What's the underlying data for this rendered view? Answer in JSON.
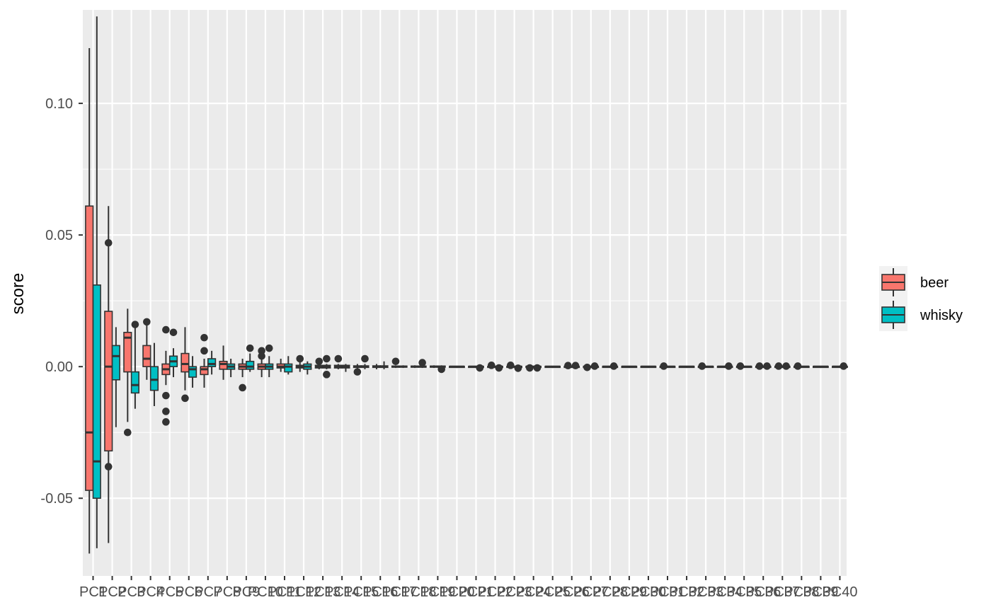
{
  "colors": {
    "beer": "#F8766D",
    "whisky": "#00BFC4",
    "panel": "#EBEBEB",
    "grid": "#FFFFFF",
    "box_outline": "#333333"
  },
  "legend": {
    "position": "right",
    "items": [
      {
        "key": "beer",
        "label": "beer"
      },
      {
        "key": "whisky",
        "label": "whisky"
      }
    ]
  },
  "chart_data": {
    "type": "boxplot",
    "title": "",
    "xlabel": "",
    "ylabel": "score",
    "ylim": [
      -0.0795,
      0.1355
    ],
    "yticks": [
      -0.05,
      0.0,
      0.05,
      0.1
    ],
    "ytick_labels": [
      "-0.05",
      "0.00",
      "0.05",
      "0.10"
    ],
    "grid": true,
    "categories": [
      "PC1",
      "PC2",
      "PC3",
      "PC4",
      "PC5",
      "PC6",
      "PC7",
      "PC8",
      "PC9",
      "PC10",
      "PC11",
      "PC12",
      "PC13",
      "PC14",
      "PC15",
      "PC16",
      "PC17",
      "PC18",
      "PC19",
      "PC20",
      "PC21",
      "PC22",
      "PC23",
      "PC24",
      "PC25",
      "PC26",
      "PC27",
      "PC28",
      "PC29",
      "PC30",
      "PC31",
      "PC32",
      "PC33",
      "PC34",
      "PC35",
      "PC36",
      "PC37",
      "PC38",
      "PC39",
      "PC40"
    ],
    "series": [
      {
        "name": "beer",
        "boxes": [
          {
            "lo": -0.071,
            "q1": -0.047,
            "med": -0.025,
            "q3": 0.061,
            "hi": 0.121,
            "out": []
          },
          {
            "lo": -0.067,
            "q1": -0.032,
            "med": 0.0,
            "q3": 0.021,
            "hi": 0.061,
            "out": [
              0.047,
              -0.038
            ]
          },
          {
            "lo": -0.021,
            "q1": -0.002,
            "med": 0.011,
            "q3": 0.013,
            "hi": 0.022,
            "out": [
              -0.025
            ]
          },
          {
            "lo": -0.005,
            "q1": 0.0,
            "med": 0.003,
            "q3": 0.008,
            "hi": 0.016,
            "out": [
              0.017
            ]
          },
          {
            "lo": -0.007,
            "q1": -0.003,
            "med": -0.001,
            "q3": 0.001,
            "hi": 0.006,
            "out": [
              0.014,
              -0.011,
              -0.017,
              -0.021
            ]
          },
          {
            "lo": -0.009,
            "q1": -0.002,
            "med": 0.001,
            "q3": 0.005,
            "hi": 0.015,
            "out": [
              -0.012
            ]
          },
          {
            "lo": -0.008,
            "q1": -0.003,
            "med": -0.001,
            "q3": 0.0,
            "hi": 0.003,
            "out": [
              0.011,
              0.006
            ]
          },
          {
            "lo": -0.005,
            "q1": -0.001,
            "med": 0.001,
            "q3": 0.002,
            "hi": 0.008,
            "out": []
          },
          {
            "lo": -0.004,
            "q1": -0.001,
            "med": 0.0,
            "q3": 0.001,
            "hi": 0.003,
            "out": [
              -0.008
            ]
          },
          {
            "lo": -0.004,
            "q1": -0.001,
            "med": 0.0,
            "q3": 0.001,
            "hi": 0.003,
            "out": [
              0.006,
              0.004
            ]
          },
          {
            "lo": -0.002,
            "q1": -0.0005,
            "med": 0.0,
            "q3": 0.001,
            "hi": 0.003,
            "out": []
          },
          {
            "lo": -0.002,
            "q1": -0.0005,
            "med": 0.0,
            "q3": 0.0005,
            "hi": 0.002,
            "out": [
              0.003
            ]
          },
          {
            "lo": -0.001,
            "q1": -0.0005,
            "med": 0.0,
            "q3": 0.0005,
            "hi": 0.001,
            "out": [
              0.002
            ]
          },
          {
            "lo": -0.001,
            "q1": -0.0005,
            "med": 0.0,
            "q3": 0.0005,
            "hi": 0.001,
            "out": [
              0.003
            ]
          },
          {
            "lo": -0.001,
            "q1": -0.0003,
            "med": 0.0,
            "q3": 0.0003,
            "hi": 0.001,
            "out": [
              -0.002
            ]
          },
          {
            "lo": -0.001,
            "q1": -0.0003,
            "med": 0.0,
            "q3": 0.0003,
            "hi": 0.001,
            "out": []
          },
          {
            "lo": -0.0005,
            "q1": -0.0002,
            "med": 0.0,
            "q3": 0.0002,
            "hi": 0.0005,
            "out": [
              0.002
            ]
          },
          {
            "lo": -0.0005,
            "q1": -0.0002,
            "med": 0.0,
            "q3": 0.0002,
            "hi": 0.0005,
            "out": []
          },
          {
            "lo": -0.0005,
            "q1": -0.0002,
            "med": 0.0,
            "q3": 0.0002,
            "hi": 0.0005,
            "out": []
          },
          {
            "lo": -0.0003,
            "q1": -0.0001,
            "med": 0.0,
            "q3": 0.0001,
            "hi": 0.0003,
            "out": []
          },
          {
            "lo": -0.0003,
            "q1": -0.0001,
            "med": 0.0,
            "q3": 0.0001,
            "hi": 0.0003,
            "out": []
          },
          {
            "lo": -0.0003,
            "q1": -0.0001,
            "med": 0.0,
            "q3": 0.0001,
            "hi": 0.0003,
            "out": [
              0.0005
            ]
          },
          {
            "lo": -0.0003,
            "q1": -0.0001,
            "med": 0.0,
            "q3": 0.0001,
            "hi": 0.0003,
            "out": [
              0.0005
            ]
          },
          {
            "lo": -0.0003,
            "q1": -0.0001,
            "med": 0.0,
            "q3": 0.0001,
            "hi": 0.0003,
            "out": [
              -0.0005
            ]
          },
          {
            "lo": -0.0003,
            "q1": -0.0001,
            "med": 0.0,
            "q3": 0.0001,
            "hi": 0.0003,
            "out": []
          },
          {
            "lo": -0.0003,
            "q1": -0.0001,
            "med": 0.0,
            "q3": 0.0001,
            "hi": 0.0003,
            "out": [
              0.0004
            ]
          },
          {
            "lo": -0.0003,
            "q1": -0.0001,
            "med": 0.0,
            "q3": 0.0001,
            "hi": 0.0003,
            "out": [
              -0.0003
            ]
          },
          {
            "lo": -0.0003,
            "q1": -0.0001,
            "med": 0.0,
            "q3": 0.0001,
            "hi": 0.0003,
            "out": []
          },
          {
            "lo": -0.0003,
            "q1": -0.0001,
            "med": 0.0,
            "q3": 0.0001,
            "hi": 0.0003,
            "out": []
          },
          {
            "lo": -0.0003,
            "q1": -0.0001,
            "med": 0.0,
            "q3": 0.0001,
            "hi": 0.0003,
            "out": []
          },
          {
            "lo": -0.0003,
            "q1": -0.0001,
            "med": 0.0,
            "q3": 0.0001,
            "hi": 0.0003,
            "out": [
              0.0002
            ]
          },
          {
            "lo": -0.0003,
            "q1": -0.0001,
            "med": 0.0,
            "q3": 0.0001,
            "hi": 0.0003,
            "out": []
          },
          {
            "lo": -0.0003,
            "q1": -0.0001,
            "med": 0.0,
            "q3": 0.0001,
            "hi": 0.0003,
            "out": [
              0.0002
            ]
          },
          {
            "lo": -0.0003,
            "q1": -0.0001,
            "med": 0.0,
            "q3": 0.0001,
            "hi": 0.0003,
            "out": []
          },
          {
            "lo": -0.0003,
            "q1": -0.0001,
            "med": 0.0,
            "q3": 0.0001,
            "hi": 0.0003,
            "out": [
              0.0002
            ]
          },
          {
            "lo": -0.0003,
            "q1": -0.0001,
            "med": 0.0,
            "q3": 0.0001,
            "hi": 0.0003,
            "out": [
              0.0002
            ]
          },
          {
            "lo": -0.0003,
            "q1": -0.0001,
            "med": 0.0,
            "q3": 0.0001,
            "hi": 0.0003,
            "out": [
              0.0002
            ]
          },
          {
            "lo": -0.0003,
            "q1": -0.0001,
            "med": 0.0,
            "q3": 0.0001,
            "hi": 0.0003,
            "out": [
              0.0002
            ]
          },
          {
            "lo": -0.0003,
            "q1": -0.0001,
            "med": 0.0,
            "q3": 0.0001,
            "hi": 0.0003,
            "out": []
          },
          {
            "lo": -0.0003,
            "q1": -0.0001,
            "med": 0.0,
            "q3": 0.0001,
            "hi": 0.0003,
            "out": []
          }
        ]
      },
      {
        "name": "whisky",
        "boxes": [
          {
            "lo": -0.069,
            "q1": -0.05,
            "med": -0.036,
            "q3": 0.031,
            "hi": 0.133,
            "out": []
          },
          {
            "lo": -0.023,
            "q1": -0.005,
            "med": 0.004,
            "q3": 0.008,
            "hi": 0.015,
            "out": []
          },
          {
            "lo": -0.016,
            "q1": -0.01,
            "med": -0.007,
            "q3": -0.002,
            "hi": 0.015,
            "out": [
              0.016
            ]
          },
          {
            "lo": -0.015,
            "q1": -0.009,
            "med": -0.005,
            "q3": 0.0,
            "hi": 0.009,
            "out": []
          },
          {
            "lo": -0.004,
            "q1": 0.0,
            "med": 0.002,
            "q3": 0.004,
            "hi": 0.007,
            "out": [
              0.013
            ]
          },
          {
            "lo": -0.008,
            "q1": -0.004,
            "med": -0.001,
            "q3": 0.0,
            "hi": 0.004,
            "out": []
          },
          {
            "lo": -0.003,
            "q1": 0.0,
            "med": 0.001,
            "q3": 0.003,
            "hi": 0.006,
            "out": []
          },
          {
            "lo": -0.004,
            "q1": -0.001,
            "med": 0.0,
            "q3": 0.001,
            "hi": 0.003,
            "out": []
          },
          {
            "lo": -0.002,
            "q1": -0.001,
            "med": 0.0,
            "q3": 0.002,
            "hi": 0.005,
            "out": [
              0.007
            ]
          },
          {
            "lo": -0.004,
            "q1": -0.001,
            "med": 0.0,
            "q3": 0.001,
            "hi": 0.004,
            "out": [
              0.007
            ]
          },
          {
            "lo": -0.003,
            "q1": -0.002,
            "med": 0.0,
            "q3": 0.001,
            "hi": 0.004,
            "out": []
          },
          {
            "lo": -0.003,
            "q1": -0.001,
            "med": 0.0,
            "q3": 0.001,
            "hi": 0.002,
            "out": []
          },
          {
            "lo": -0.001,
            "q1": -0.0005,
            "med": 0.0,
            "q3": 0.0005,
            "hi": 0.001,
            "out": [
              0.003,
              -0.003
            ]
          },
          {
            "lo": -0.002,
            "q1": -0.0005,
            "med": 0.0,
            "q3": 0.0005,
            "hi": 0.001,
            "out": []
          },
          {
            "lo": -0.001,
            "q1": -0.0003,
            "med": 0.0,
            "q3": 0.0003,
            "hi": 0.001,
            "out": [
              0.003
            ]
          },
          {
            "lo": -0.001,
            "q1": -0.0003,
            "med": 0.0,
            "q3": 0.0003,
            "hi": 0.002,
            "out": []
          },
          {
            "lo": -0.0005,
            "q1": -0.0002,
            "med": 0.0,
            "q3": 0.0002,
            "hi": 0.0005,
            "out": []
          },
          {
            "lo": -0.0005,
            "q1": -0.0002,
            "med": 0.0,
            "q3": 0.0002,
            "hi": 0.0005,
            "out": [
              0.0015
            ]
          },
          {
            "lo": -0.0005,
            "q1": -0.0002,
            "med": 0.0,
            "q3": 0.0002,
            "hi": 0.0005,
            "out": [
              -0.001
            ]
          },
          {
            "lo": -0.0003,
            "q1": -0.0001,
            "med": 0.0,
            "q3": 0.0001,
            "hi": 0.0003,
            "out": []
          },
          {
            "lo": -0.0003,
            "q1": -0.0001,
            "med": 0.0,
            "q3": 0.0001,
            "hi": 0.0003,
            "out": [
              -0.0005
            ]
          },
          {
            "lo": -0.0003,
            "q1": -0.0001,
            "med": 0.0,
            "q3": 0.0001,
            "hi": 0.0003,
            "out": [
              -0.0005
            ]
          },
          {
            "lo": -0.0003,
            "q1": -0.0001,
            "med": 0.0,
            "q3": 0.0001,
            "hi": 0.0003,
            "out": [
              -0.0006
            ]
          },
          {
            "lo": -0.0003,
            "q1": -0.0001,
            "med": 0.0,
            "q3": 0.0001,
            "hi": 0.0003,
            "out": [
              -0.0005
            ]
          },
          {
            "lo": -0.0003,
            "q1": -0.0001,
            "med": 0.0,
            "q3": 0.0001,
            "hi": 0.0003,
            "out": []
          },
          {
            "lo": -0.0003,
            "q1": -0.0001,
            "med": 0.0,
            "q3": 0.0001,
            "hi": 0.0003,
            "out": [
              0.0004
            ]
          },
          {
            "lo": -0.0003,
            "q1": -0.0001,
            "med": 0.0,
            "q3": 0.0001,
            "hi": 0.0003,
            "out": [
              0.0002
            ]
          },
          {
            "lo": -0.0003,
            "q1": -0.0001,
            "med": 0.0,
            "q3": 0.0001,
            "hi": 0.0003,
            "out": [
              0.0002
            ]
          },
          {
            "lo": -0.0003,
            "q1": -0.0001,
            "med": 0.0,
            "q3": 0.0001,
            "hi": 0.0003,
            "out": []
          },
          {
            "lo": -0.0003,
            "q1": -0.0001,
            "med": 0.0,
            "q3": 0.0001,
            "hi": 0.0003,
            "out": []
          },
          {
            "lo": -0.0003,
            "q1": -0.0001,
            "med": 0.0,
            "q3": 0.0001,
            "hi": 0.0003,
            "out": []
          },
          {
            "lo": -0.0003,
            "q1": -0.0001,
            "med": 0.0,
            "q3": 0.0001,
            "hi": 0.0003,
            "out": []
          },
          {
            "lo": -0.0003,
            "q1": -0.0001,
            "med": 0.0,
            "q3": 0.0001,
            "hi": 0.0003,
            "out": []
          },
          {
            "lo": -0.0003,
            "q1": -0.0001,
            "med": 0.0,
            "q3": 0.0001,
            "hi": 0.0003,
            "out": [
              0.0002
            ]
          },
          {
            "lo": -0.0003,
            "q1": -0.0001,
            "med": 0.0,
            "q3": 0.0001,
            "hi": 0.0003,
            "out": []
          },
          {
            "lo": -0.0003,
            "q1": -0.0001,
            "med": 0.0,
            "q3": 0.0001,
            "hi": 0.0003,
            "out": [
              0.0002
            ]
          },
          {
            "lo": -0.0003,
            "q1": -0.0001,
            "med": 0.0,
            "q3": 0.0001,
            "hi": 0.0003,
            "out": [
              0.0002
            ]
          },
          {
            "lo": -0.0003,
            "q1": -0.0001,
            "med": 0.0,
            "q3": 0.0001,
            "hi": 0.0003,
            "out": []
          },
          {
            "lo": -0.0003,
            "q1": -0.0001,
            "med": 0.0,
            "q3": 0.0001,
            "hi": 0.0003,
            "out": []
          },
          {
            "lo": -0.0003,
            "q1": -0.0001,
            "med": 0.0,
            "q3": 0.0001,
            "hi": 0.0003,
            "out": [
              0.0002
            ]
          }
        ]
      }
    ]
  }
}
